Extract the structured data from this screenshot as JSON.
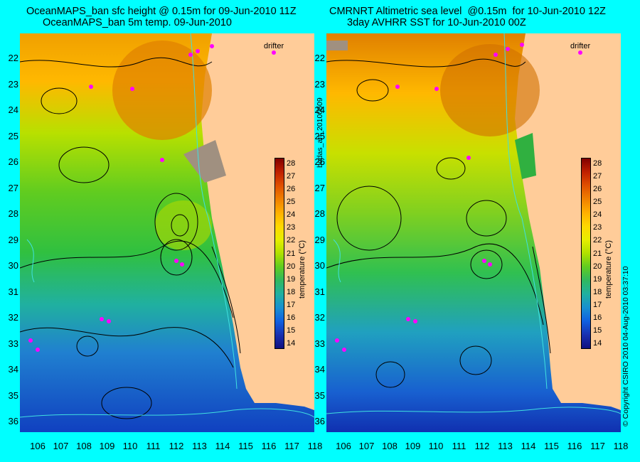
{
  "left_panel": {
    "title_line1": "OceanMAPS_ban sfc height @ 0.15m for 09-Jun-2010 11Z",
    "title_line2": "OceanMAPS_ban 5m temp. 09-Jun-2010"
  },
  "right_panel": {
    "title_line1": "CMRNRT Altimetric sea level  @0.15m  for 10-Jun-2010 12Z",
    "title_line2": "3day AVHRR SST for 10-Jun-2010 00Z"
  },
  "drifter_label": "drifter",
  "side_labels": {
    "middle": "bodas_an_20100609",
    "right": "© Copyright CSIRO 2010   04-Aug-2010 03:37:10"
  },
  "colorbar": {
    "unit": "temperature (°C)",
    "ticks": [
      "28",
      "27",
      "26",
      "25",
      "24",
      "23",
      "22",
      "21",
      "20",
      "19",
      "18",
      "17",
      "16",
      "15",
      "14"
    ],
    "colors": [
      "#800000",
      "#c02000",
      "#e05000",
      "#f08000",
      "#ffb000",
      "#ffd800",
      "#e6ee00",
      "#b0e000",
      "#60cc20",
      "#30b860",
      "#20b0a0",
      "#1890d0",
      "#1060e0",
      "#1830b0",
      "#101080"
    ]
  },
  "latitude_labels": [
    "22",
    "23",
    "24",
    "25",
    "26",
    "27",
    "28",
    "29",
    "30",
    "31",
    "32",
    "33",
    "34",
    "35",
    "36"
  ],
  "longitude_labels": [
    "106",
    "107",
    "108",
    "109",
    "110",
    "111",
    "112",
    "113",
    "114",
    "115",
    "116",
    "117",
    "118"
  ]
}
